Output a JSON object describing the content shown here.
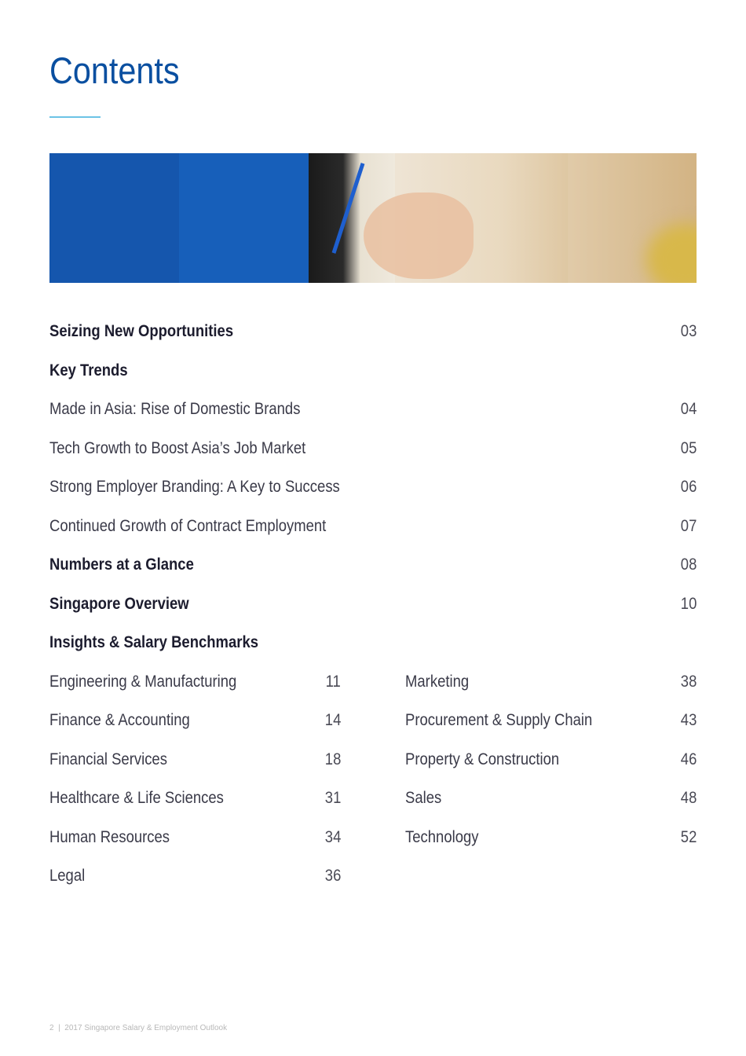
{
  "title": "Contents",
  "entries": [
    {
      "label": "Seizing New Opportunities",
      "page": "03",
      "bold": true
    },
    {
      "label": "Key Trends",
      "page": "",
      "bold": true
    },
    {
      "label": "Made in Asia: Rise of Domestic Brands",
      "page": "04",
      "bold": false
    },
    {
      "label": "Tech Growth to Boost Asia’s Job Market",
      "page": "05",
      "bold": false
    },
    {
      "label": "Strong Employer Branding: A Key to Success",
      "page": "06",
      "bold": false
    },
    {
      "label": "Continued Growth of Contract Employment",
      "page": "07",
      "bold": false
    },
    {
      "label": "Numbers at a Glance",
      "page": "08",
      "bold": true
    },
    {
      "label": "Singapore Overview",
      "page": "10",
      "bold": true
    },
    {
      "label": "Insights & Salary Benchmarks",
      "page": "",
      "bold": true
    }
  ],
  "left_column": [
    {
      "label": "Engineering & Manufacturing",
      "page": "11"
    },
    {
      "label": "Finance & Accounting",
      "page": "14"
    },
    {
      "label": "Financial Services",
      "page": "18"
    },
    {
      "label": "Healthcare & Life Sciences",
      "page": "31"
    },
    {
      "label": "Human Resources",
      "page": "34"
    },
    {
      "label": "Legal",
      "page": "36"
    }
  ],
  "right_column": [
    {
      "label": "Marketing",
      "page": "38"
    },
    {
      "label": "Procurement & Supply Chain",
      "page": "43"
    },
    {
      "label": "Property & Construction",
      "page": "46"
    },
    {
      "label": "Sales",
      "page": "48"
    },
    {
      "label": "Technology",
      "page": "52"
    }
  ],
  "footer": {
    "page_number": "2",
    "separator": "|",
    "publication": "2017 Singapore Salary & Employment Outlook"
  },
  "colors": {
    "title": "#0a4fa0",
    "accent_rule": "#6cc3e6"
  }
}
